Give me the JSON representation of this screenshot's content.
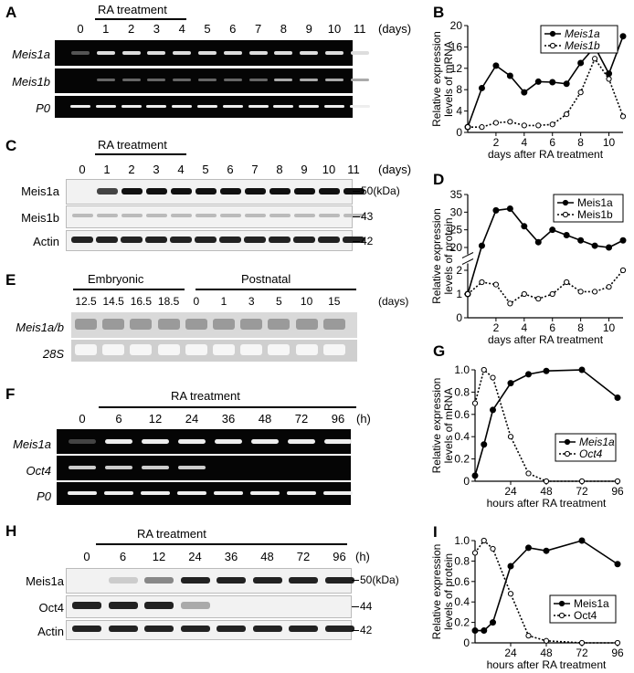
{
  "panel_letters": {
    "A": "A",
    "B": "B",
    "C": "C",
    "D": "D",
    "E": "E",
    "F": "F",
    "G": "G",
    "H": "H",
    "I": "I"
  },
  "common": {
    "ra_treatment": "RA treatment",
    "days_unit": "(days)",
    "hours_unit": "(h)",
    "kda": "(kDa)"
  },
  "panel_A": {
    "lanes": [
      "0",
      "1",
      "2",
      "3",
      "4",
      "5",
      "6",
      "7",
      "8",
      "9",
      "10",
      "11"
    ],
    "rows": [
      "Meis1a",
      "Meis1b",
      "P0"
    ]
  },
  "panel_C": {
    "lanes": [
      "0",
      "1",
      "2",
      "3",
      "4",
      "5",
      "6",
      "7",
      "8",
      "9",
      "10",
      "11"
    ],
    "rows": [
      "Meis1a",
      "Meis1b",
      "Actin"
    ],
    "markers": [
      "50",
      "43",
      "42"
    ]
  },
  "panel_E": {
    "groups": [
      "Embryonic",
      "Postnatal"
    ],
    "lanes": [
      "12.5",
      "14.5",
      "16.5",
      "18.5",
      "0",
      "1",
      "3",
      "5",
      "10",
      "15"
    ],
    "rows": [
      "Meis1a/b",
      "28S"
    ]
  },
  "panel_F": {
    "lanes": [
      "0",
      "6",
      "12",
      "24",
      "36",
      "48",
      "72",
      "96"
    ],
    "rows": [
      "Meis1a",
      "Oct4",
      "P0"
    ]
  },
  "panel_H": {
    "lanes": [
      "0",
      "6",
      "12",
      "24",
      "36",
      "48",
      "72",
      "96"
    ],
    "rows": [
      "Meis1a",
      "Oct4",
      "Actin"
    ],
    "markers": [
      "50",
      "44",
      "42"
    ]
  },
  "chart_data": [
    {
      "panel": "B",
      "type": "line",
      "ylabel_lines": [
        "Relative expression",
        "levels of mRNA"
      ],
      "xlabel": "days after RA treatment",
      "xlim": [
        0,
        11
      ],
      "ylim": [
        0,
        20
      ],
      "xticks": [
        "2",
        "4",
        "6",
        "8",
        "10"
      ],
      "yticks": [
        "0",
        "4",
        "8",
        "12",
        "16",
        "20"
      ],
      "legend": "top-right",
      "series": [
        {
          "name": "Meis1a",
          "style": "solid",
          "x": [
            0,
            1,
            2,
            3,
            4,
            5,
            6,
            7,
            8,
            9,
            10,
            11
          ],
          "values": [
            1,
            8.3,
            12.5,
            10.6,
            7.5,
            9.5,
            9.4,
            9.1,
            13,
            16,
            11,
            18
          ]
        },
        {
          "name": "Meis1b",
          "style": "dotted",
          "x": [
            0,
            1,
            2,
            3,
            4,
            5,
            6,
            7,
            8,
            9,
            10,
            11
          ],
          "values": [
            1,
            1,
            1.8,
            2,
            1.3,
            1.3,
            1.5,
            3.4,
            7.5,
            13.8,
            10,
            3
          ]
        }
      ]
    },
    {
      "panel": "D",
      "type": "line",
      "ylabel_lines": [
        "Relative expression",
        "levels of protein"
      ],
      "xlabel": "days after RA treatment",
      "xlim": [
        0,
        11
      ],
      "ylim_lower": [
        0,
        2
      ],
      "ylim_upper": [
        20,
        35
      ],
      "xticks": [
        "2",
        "4",
        "6",
        "8",
        "10"
      ],
      "yticks_lower": [
        "0",
        "1",
        "2"
      ],
      "yticks_upper": [
        "20",
        "25",
        "30",
        "35"
      ],
      "legend": "top-right",
      "series": [
        {
          "name": "Meis1a",
          "style": "solid",
          "x": [
            0,
            1,
            2,
            3,
            4,
            5,
            6,
            7,
            8,
            9,
            10,
            11
          ],
          "values": [
            1,
            20.5,
            30.5,
            31,
            26,
            21.5,
            25,
            23.5,
            22,
            20.5,
            20,
            22
          ]
        },
        {
          "name": "Meis1b",
          "style": "dotted",
          "x": [
            0,
            1,
            2,
            3,
            4,
            5,
            6,
            7,
            8,
            9,
            10,
            11
          ],
          "values": [
            1,
            1.5,
            1.4,
            0.6,
            1,
            0.8,
            1,
            1.5,
            1.1,
            1.1,
            1.3,
            2
          ]
        }
      ]
    },
    {
      "panel": "G",
      "type": "line",
      "ylabel_lines": [
        "Relative expression",
        "levels of mRNA"
      ],
      "xlabel": "hours after RA treatment",
      "xlim": [
        0,
        96
      ],
      "ylim": [
        0,
        1.0
      ],
      "xticks": [
        "24",
        "48",
        "72",
        "96"
      ],
      "yticks": [
        "0",
        "0.2",
        "0.4",
        "0.6",
        "0.8",
        "1.0"
      ],
      "legend": "middle-right",
      "series": [
        {
          "name": "Meis1a",
          "style": "solid",
          "x": [
            0,
            6,
            12,
            24,
            36,
            48,
            72,
            96
          ],
          "values": [
            0.05,
            0.33,
            0.64,
            0.88,
            0.96,
            0.99,
            1.0,
            0.75
          ]
        },
        {
          "name": "Oct4",
          "style": "dotted",
          "x": [
            0,
            6,
            12,
            24,
            36,
            48,
            72,
            96
          ],
          "values": [
            0.7,
            1.0,
            0.93,
            0.4,
            0.07,
            0.0,
            0.0,
            0.0
          ]
        }
      ]
    },
    {
      "panel": "I",
      "type": "line",
      "ylabel_lines": [
        "Relative expression",
        "levels of protein"
      ],
      "xlabel": "hours after RA treatment",
      "xlim": [
        0,
        96
      ],
      "ylim": [
        0,
        1.0
      ],
      "xticks": [
        "24",
        "48",
        "72",
        "96"
      ],
      "yticks": [
        "0",
        "0.2",
        "0.4",
        "0.6",
        "0.8",
        "1.0"
      ],
      "legend": "middle-right",
      "series": [
        {
          "name": "Meis1a",
          "style": "solid",
          "x": [
            0,
            6,
            12,
            24,
            36,
            48,
            72,
            96
          ],
          "values": [
            0.12,
            0.12,
            0.2,
            0.75,
            0.93,
            0.9,
            1.0,
            0.77
          ]
        },
        {
          "name": "Oct4",
          "style": "dotted",
          "x": [
            0,
            6,
            12,
            24,
            36,
            48,
            72,
            96
          ],
          "values": [
            0.88,
            1.0,
            0.92,
            0.48,
            0.07,
            0.02,
            0.0,
            0.0
          ]
        }
      ]
    }
  ]
}
